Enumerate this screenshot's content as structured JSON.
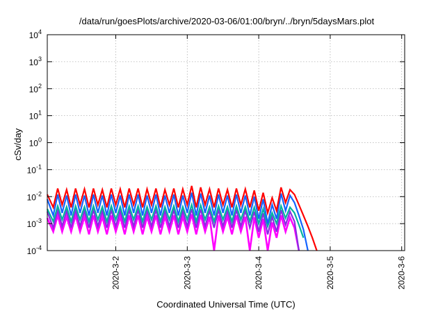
{
  "chart_data": {
    "type": "line",
    "title": "/data/run/goesPlots/archive/2020-03-06/01:00/bryn/../bryn/5daysMars.plot",
    "xlabel": "Coordinated Universal Time (UTC)",
    "ylabel": "cSv/day",
    "y_scale": "log",
    "ylim": [
      0.0001,
      10000
    ],
    "xlim": [
      "2020-03-01T01:00",
      "2020-03-06T01:00"
    ],
    "grid": true,
    "legend": "none",
    "x_ticks": [
      "2020-3-2",
      "2020-3-3",
      "2020-3-4",
      "2020-3-5",
      "2020-3-6"
    ],
    "y_ticks": [
      {
        "base": "10",
        "exp": "-4"
      },
      {
        "base": "10",
        "exp": "-3"
      },
      {
        "base": "10",
        "exp": "-2"
      },
      {
        "base": "10",
        "exp": "-1"
      },
      {
        "base": "10",
        "exp": "0"
      },
      {
        "base": "10",
        "exp": "1"
      },
      {
        "base": "10",
        "exp": "2"
      },
      {
        "base": "10",
        "exp": "3"
      },
      {
        "base": "10",
        "exp": "4"
      }
    ],
    "series_style": [
      {
        "color": "#ff0000",
        "width": 2.2
      },
      {
        "color": "#1464ff",
        "width": 2.2
      },
      {
        "color": "#00b4a0",
        "width": 2.2
      },
      {
        "color": "#8a2be2",
        "width": 2.2
      },
      {
        "color": "#ff00ff",
        "width": 2.6
      }
    ],
    "series": [
      {
        "x": [
          "2020-03-01T01:00",
          "2020-03-01T03:00",
          "2020-03-01T04:30",
          "2020-03-01T06:00",
          "2020-03-01T07:30",
          "2020-03-01T09:00",
          "2020-03-01T10:30",
          "2020-03-01T12:00",
          "2020-03-01T13:30",
          "2020-03-01T15:00",
          "2020-03-01T16:30",
          "2020-03-01T18:00",
          "2020-03-01T19:30",
          "2020-03-01T21:00",
          "2020-03-01T22:30",
          "2020-03-02T00:00",
          "2020-03-02T01:30",
          "2020-03-02T03:00",
          "2020-03-02T04:30",
          "2020-03-02T06:00",
          "2020-03-02T07:30",
          "2020-03-02T09:00",
          "2020-03-02T10:30",
          "2020-03-02T12:00",
          "2020-03-02T13:30",
          "2020-03-02T15:00",
          "2020-03-02T16:30",
          "2020-03-02T18:00",
          "2020-03-02T19:30",
          "2020-03-02T21:00",
          "2020-03-02T22:30",
          "2020-03-03T00:00",
          "2020-03-03T01:30",
          "2020-03-03T03:00",
          "2020-03-03T04:30",
          "2020-03-03T06:00",
          "2020-03-03T07:30",
          "2020-03-03T09:00",
          "2020-03-03T10:30",
          "2020-03-03T12:00",
          "2020-03-03T13:30",
          "2020-03-03T15:00",
          "2020-03-03T16:30",
          "2020-03-03T18:00",
          "2020-03-03T19:30",
          "2020-03-03T21:00",
          "2020-03-03T22:30",
          "2020-03-04T00:00",
          "2020-03-04T01:30",
          "2020-03-04T03:00",
          "2020-03-04T04:30",
          "2020-03-04T06:00",
          "2020-03-04T07:30",
          "2020-03-04T09:00",
          "2020-03-04T10:30",
          "2020-03-04T12:00",
          "2020-03-04T13:30",
          "2020-03-04T15:00",
          "2020-03-04T16:30",
          "2020-03-04T18:00",
          "2020-03-04T19:30"
        ],
        "y": [
          0.012,
          0.004,
          0.02,
          0.005,
          0.018,
          0.004,
          0.02,
          0.005,
          0.019,
          0.004,
          0.02,
          0.005,
          0.018,
          0.004,
          0.02,
          0.005,
          0.019,
          0.004,
          0.02,
          0.005,
          0.02,
          0.004,
          0.019,
          0.005,
          0.02,
          0.004,
          0.018,
          0.005,
          0.02,
          0.004,
          0.019,
          0.005,
          0.025,
          0.004,
          0.022,
          0.005,
          0.019,
          0.004,
          0.02,
          0.005,
          0.018,
          0.004,
          0.02,
          0.005,
          0.019,
          0.004,
          0.017,
          0.003,
          0.014,
          0.0025,
          0.009,
          0.003,
          0.022,
          0.006,
          0.018,
          0.012,
          0.005,
          0.002,
          0.0008,
          0.0003,
          0.0001
        ]
      },
      {
        "x": [
          "2020-03-01T01:00",
          "2020-03-01T03:00",
          "2020-03-01T04:30",
          "2020-03-01T06:00",
          "2020-03-01T07:30",
          "2020-03-01T09:00",
          "2020-03-01T10:30",
          "2020-03-01T12:00",
          "2020-03-01T13:30",
          "2020-03-01T15:00",
          "2020-03-01T16:30",
          "2020-03-01T18:00",
          "2020-03-01T19:30",
          "2020-03-01T21:00",
          "2020-03-01T22:30",
          "2020-03-02T00:00",
          "2020-03-02T01:30",
          "2020-03-02T03:00",
          "2020-03-02T04:30",
          "2020-03-02T06:00",
          "2020-03-02T07:30",
          "2020-03-02T09:00",
          "2020-03-02T10:30",
          "2020-03-02T12:00",
          "2020-03-02T13:30",
          "2020-03-02T15:00",
          "2020-03-02T16:30",
          "2020-03-02T18:00",
          "2020-03-02T19:30",
          "2020-03-02T21:00",
          "2020-03-02T22:30",
          "2020-03-03T00:00",
          "2020-03-03T01:30",
          "2020-03-03T03:00",
          "2020-03-03T04:30",
          "2020-03-03T06:00",
          "2020-03-03T07:30",
          "2020-03-03T09:00",
          "2020-03-03T10:30",
          "2020-03-03T12:00",
          "2020-03-03T13:30",
          "2020-03-03T15:00",
          "2020-03-03T16:30",
          "2020-03-03T18:00",
          "2020-03-03T19:30",
          "2020-03-03T21:00",
          "2020-03-03T22:30",
          "2020-03-04T00:00",
          "2020-03-04T01:30",
          "2020-03-04T03:00",
          "2020-03-04T04:30",
          "2020-03-04T06:00",
          "2020-03-04T07:30",
          "2020-03-04T09:00",
          "2020-03-04T10:30",
          "2020-03-04T12:00",
          "2020-03-04T13:30",
          "2020-03-04T15:00",
          "2020-03-04T16:30"
        ],
        "y": [
          0.008,
          0.002,
          0.012,
          0.0025,
          0.011,
          0.002,
          0.012,
          0.0025,
          0.011,
          0.002,
          0.012,
          0.0025,
          0.011,
          0.002,
          0.012,
          0.0025,
          0.011,
          0.002,
          0.012,
          0.0025,
          0.012,
          0.002,
          0.011,
          0.0025,
          0.012,
          0.002,
          0.011,
          0.0025,
          0.012,
          0.002,
          0.011,
          0.0025,
          0.014,
          0.002,
          0.013,
          0.0025,
          0.011,
          0.002,
          0.012,
          0.0025,
          0.011,
          0.002,
          0.012,
          0.0025,
          0.011,
          0.002,
          0.01,
          0.0015,
          0.008,
          0.001,
          0.005,
          0.0015,
          0.013,
          0.003,
          0.011,
          0.006,
          0.002,
          0.0006,
          0.0001
        ]
      },
      {
        "x": [
          "2020-03-01T01:00",
          "2020-03-01T03:00",
          "2020-03-01T04:30",
          "2020-03-01T06:00",
          "2020-03-01T07:30",
          "2020-03-01T09:00",
          "2020-03-01T10:30",
          "2020-03-01T12:00",
          "2020-03-01T13:30",
          "2020-03-01T15:00",
          "2020-03-01T16:30",
          "2020-03-01T18:00",
          "2020-03-01T19:30",
          "2020-03-01T21:00",
          "2020-03-01T22:30",
          "2020-03-02T00:00",
          "2020-03-02T01:30",
          "2020-03-02T03:00",
          "2020-03-02T04:30",
          "2020-03-02T06:00",
          "2020-03-02T07:30",
          "2020-03-02T09:00",
          "2020-03-02T10:30",
          "2020-03-02T12:00",
          "2020-03-02T13:30",
          "2020-03-02T15:00",
          "2020-03-02T16:30",
          "2020-03-02T18:00",
          "2020-03-02T19:30",
          "2020-03-02T21:00",
          "2020-03-02T22:30",
          "2020-03-03T00:00",
          "2020-03-03T01:30",
          "2020-03-03T03:00",
          "2020-03-03T04:30",
          "2020-03-03T06:00",
          "2020-03-03T07:30",
          "2020-03-03T09:00",
          "2020-03-03T10:30",
          "2020-03-03T12:00",
          "2020-03-03T13:30",
          "2020-03-03T15:00",
          "2020-03-03T16:30",
          "2020-03-03T18:00",
          "2020-03-03T19:30",
          "2020-03-03T21:00",
          "2020-03-03T22:30",
          "2020-03-04T00:00",
          "2020-03-04T01:30",
          "2020-03-04T03:00",
          "2020-03-04T04:30",
          "2020-03-04T06:00",
          "2020-03-04T07:30",
          "2020-03-04T09:00",
          "2020-03-04T10:30",
          "2020-03-04T12:00",
          "2020-03-04T13:30",
          "2020-03-04T15:00"
        ],
        "y": [
          0.0035,
          0.0012,
          0.0045,
          0.0014,
          0.0042,
          0.0012,
          0.0045,
          0.0014,
          0.0042,
          0.0012,
          0.0045,
          0.0014,
          0.0042,
          0.0012,
          0.0045,
          0.0014,
          0.0042,
          0.0012,
          0.0045,
          0.0014,
          0.0045,
          0.0012,
          0.0042,
          0.0014,
          0.0045,
          0.0012,
          0.0042,
          0.0014,
          0.0045,
          0.0012,
          0.0042,
          0.0014,
          0.005,
          0.0012,
          0.0048,
          0.0014,
          0.0042,
          0.0012,
          0.0045,
          0.0014,
          0.0042,
          0.0012,
          0.0045,
          0.0014,
          0.0042,
          0.0012,
          0.004,
          0.001,
          0.0035,
          0.0008,
          0.0025,
          0.001,
          0.0045,
          0.0016,
          0.004,
          0.0025,
          0.0009,
          0.0003
        ]
      },
      {
        "x": [
          "2020-03-01T01:00",
          "2020-03-01T03:00",
          "2020-03-01T04:30",
          "2020-03-01T06:00",
          "2020-03-01T07:30",
          "2020-03-01T09:00",
          "2020-03-01T10:30",
          "2020-03-01T12:00",
          "2020-03-01T13:30",
          "2020-03-01T15:00",
          "2020-03-01T16:30",
          "2020-03-01T18:00",
          "2020-03-01T19:30",
          "2020-03-01T21:00",
          "2020-03-01T22:30",
          "2020-03-02T00:00",
          "2020-03-02T01:30",
          "2020-03-02T03:00",
          "2020-03-02T04:30",
          "2020-03-02T06:00",
          "2020-03-02T07:30",
          "2020-03-02T09:00",
          "2020-03-02T10:30",
          "2020-03-02T12:00",
          "2020-03-02T13:30",
          "2020-03-02T15:00",
          "2020-03-02T16:30",
          "2020-03-02T18:00",
          "2020-03-02T19:30",
          "2020-03-02T21:00",
          "2020-03-02T22:30",
          "2020-03-03T00:00",
          "2020-03-03T01:30",
          "2020-03-03T03:00",
          "2020-03-03T04:30",
          "2020-03-03T06:00",
          "2020-03-03T07:30",
          "2020-03-03T09:00",
          "2020-03-03T10:30",
          "2020-03-03T12:00",
          "2020-03-03T13:30",
          "2020-03-03T15:00",
          "2020-03-03T16:30",
          "2020-03-03T18:00",
          "2020-03-03T19:30",
          "2020-03-03T21:00",
          "2020-03-03T22:30",
          "2020-03-04T00:00",
          "2020-03-04T01:30",
          "2020-03-04T03:00",
          "2020-03-04T04:30",
          "2020-03-04T06:00",
          "2020-03-04T07:30",
          "2020-03-04T09:00",
          "2020-03-04T10:30",
          "2020-03-04T12:00",
          "2020-03-04T13:30"
        ],
        "y": [
          0.0028,
          0.0007,
          0.0032,
          0.0008,
          0.003,
          0.0007,
          0.0032,
          0.0008,
          0.003,
          0.0007,
          0.0032,
          0.0008,
          0.003,
          0.0007,
          0.0032,
          0.0008,
          0.003,
          0.0007,
          0.0032,
          0.0008,
          0.0032,
          0.0007,
          0.003,
          0.0008,
          0.0032,
          0.0007,
          0.003,
          0.0008,
          0.0032,
          0.0007,
          0.003,
          0.0008,
          0.0035,
          0.0007,
          0.0034,
          0.0008,
          0.003,
          0.0007,
          0.0032,
          0.0008,
          0.003,
          0.0007,
          0.0032,
          0.0008,
          0.003,
          0.0007,
          0.0028,
          0.0005,
          0.0024,
          0.0004,
          0.0018,
          0.0005,
          0.0032,
          0.0009,
          0.0028,
          0.0012,
          0.0001
        ]
      },
      {
        "x": [
          "2020-03-01T01:00",
          "2020-03-01T03:00",
          "2020-03-01T04:30",
          "2020-03-01T06:00",
          "2020-03-01T07:30",
          "2020-03-01T09:00",
          "2020-03-01T10:30",
          "2020-03-01T12:00",
          "2020-03-01T13:30",
          "2020-03-01T15:00",
          "2020-03-01T16:30",
          "2020-03-01T18:00",
          "2020-03-01T19:30",
          "2020-03-01T21:00",
          "2020-03-01T22:30",
          "2020-03-02T00:00",
          "2020-03-02T01:30",
          "2020-03-02T03:00",
          "2020-03-02T04:30",
          "2020-03-02T06:00",
          "2020-03-02T07:30",
          "2020-03-02T09:00",
          "2020-03-02T10:30",
          "2020-03-02T12:00",
          "2020-03-02T13:30",
          "2020-03-02T15:00",
          "2020-03-02T16:30",
          "2020-03-02T18:00",
          "2020-03-02T19:30",
          "2020-03-02T21:00",
          "2020-03-02T22:30",
          "2020-03-03T00:00",
          "2020-03-03T01:30",
          "2020-03-03T03:00",
          "2020-03-03T04:30",
          "2020-03-03T06:00",
          "2020-03-03T07:30",
          "2020-03-03T09:00",
          "2020-03-03T10:30",
          "2020-03-03T12:00",
          "2020-03-03T13:30",
          "2020-03-03T15:00",
          "2020-03-03T16:30",
          "2020-03-03T18:00",
          "2020-03-03T19:30",
          "2020-03-03T21:00",
          "2020-03-03T22:30",
          "2020-03-04T00:00",
          "2020-03-04T01:30",
          "2020-03-04T03:00",
          "2020-03-04T04:30",
          "2020-03-04T06:00",
          "2020-03-04T07:30",
          "2020-03-04T09:00",
          "2020-03-04T10:30",
          "2020-03-04T12:00",
          "2020-03-04T13:30"
        ],
        "y": [
          0.0016,
          0.0005,
          0.002,
          0.0005,
          0.0018,
          0.0005,
          0.002,
          0.0005,
          0.0018,
          0.0004,
          0.002,
          0.0005,
          0.0018,
          0.0004,
          0.002,
          0.0005,
          0.0018,
          0.0004,
          0.002,
          0.0005,
          0.002,
          0.0004,
          0.0018,
          0.0005,
          0.002,
          0.0004,
          0.0018,
          0.0005,
          0.002,
          0.0004,
          0.0018,
          0.0005,
          0.0022,
          0.0004,
          0.0021,
          0.0005,
          0.0018,
          0.0001,
          0.002,
          0.0005,
          0.0018,
          0.0004,
          0.002,
          0.0005,
          0.0018,
          0.0001,
          0.0017,
          0.0003,
          0.0015,
          0.0001,
          0.0011,
          0.0003,
          0.002,
          0.0005,
          0.0017,
          0.0007,
          0.0001
        ]
      }
    ]
  }
}
